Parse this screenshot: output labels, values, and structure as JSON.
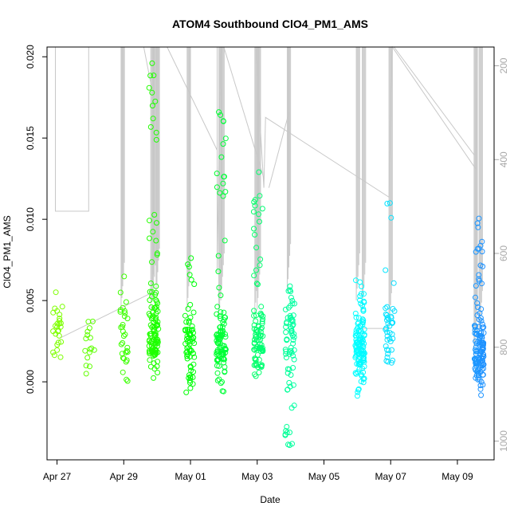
{
  "chart_data": {
    "type": "scatter",
    "title": "ATOM4 Southbound ClO4_PM1_AMS",
    "xlabel": "Date",
    "ylabel": "ClO4_PM1_AMS",
    "xlim": [
      -0.3,
      13.1
    ],
    "ylim": [
      -0.0048,
      0.0206
    ],
    "x_ticks": [
      {
        "day": 0,
        "label": "Apr 27"
      },
      {
        "day": 2,
        "label": "Apr 29"
      },
      {
        "day": 4,
        "label": "May 01"
      },
      {
        "day": 6,
        "label": "May 03"
      },
      {
        "day": 8,
        "label": "May 05"
      },
      {
        "day": 10,
        "label": "May 07"
      },
      {
        "day": 12,
        "label": "May 09"
      }
    ],
    "y_ticks": [
      0.0,
      0.005,
      0.01,
      0.015,
      0.02
    ],
    "y_tick_labels": [
      "0.000",
      "0.005",
      "0.010",
      "0.015",
      "0.020"
    ],
    "y2_axis": {
      "description": "secondary right axis (inverted, gray)",
      "range": [
        1040,
        160
      ],
      "ticks": [
        200,
        400,
        600,
        800,
        1000
      ],
      "tick_labels": [
        "200",
        "400",
        "600",
        "800",
        "1000"
      ],
      "color": "#a8a8a8"
    },
    "color_scale": {
      "from": "#7fff00",
      "via": [
        "#00ff00",
        "#00ffff"
      ],
      "to": "#1e90ff",
      "by": "x"
    },
    "clusters": [
      {
        "x": 0.02,
        "n": 26,
        "ymin": 0.0006,
        "ymax": 0.0066,
        "y_mode": 0.0028
      },
      {
        "x": 0.98,
        "n": 16,
        "ymin": 0.0005,
        "ymax": 0.0046,
        "y_mode": 0.0022
      },
      {
        "x": 1.98,
        "n": 30,
        "ymin": -0.0005,
        "ymax": 0.007,
        "y_mode": 0.0024
      },
      {
        "x": 2.9,
        "n": 120,
        "ymin": -0.0005,
        "ymax": 0.0196,
        "y_mode": 0.003
      },
      {
        "x": 3.98,
        "n": 70,
        "ymin": -0.0011,
        "ymax": 0.008,
        "y_mode": 0.0022
      },
      {
        "x": 4.92,
        "n": 110,
        "ymin": -0.0007,
        "ymax": 0.0166,
        "y_mode": 0.0024
      },
      {
        "x": 6.03,
        "n": 90,
        "ymin": -0.0002,
        "ymax": 0.0129,
        "y_mode": 0.0026
      },
      {
        "x": 6.98,
        "n": 70,
        "ymin": -0.0039,
        "ymax": 0.0065,
        "y_mode": 0.0028
      },
      {
        "x": 9.08,
        "n": 120,
        "ymin": -0.0009,
        "ymax": 0.0063,
        "y_mode": 0.002
      },
      {
        "x": 9.98,
        "n": 40,
        "ymin": 0.0008,
        "ymax": 0.011,
        "y_mode": 0.003
      },
      {
        "x": 12.65,
        "n": 130,
        "ymin": -0.0009,
        "ymax": 0.0101,
        "y_mode": 0.0018
      }
    ],
    "notable_points": [
      {
        "x": 2.85,
        "y": 0.0196
      },
      {
        "x": 2.88,
        "y": 0.0162
      },
      {
        "x": 4.85,
        "y": 0.0166
      },
      {
        "x": 6.97,
        "y": -0.0039
      },
      {
        "x": 6.05,
        "y": 0.0129
      },
      {
        "x": 9.98,
        "y": 0.011
      }
    ],
    "y2_line": {
      "color": "#c8c8c8",
      "points": [
        [
          -0.05,
          160
        ],
        [
          -0.05,
          510
        ],
        [
          0.95,
          510
        ],
        [
          0.95,
          160
        ],
        [
          1.97,
          160
        ],
        [
          1.97,
          160
        ],
        [
          2.6,
          160
        ],
        [
          2.9,
          270
        ],
        [
          2.9,
          160
        ],
        [
          4.8,
          160
        ],
        [
          4.8,
          640
        ],
        [
          4.9,
          160
        ],
        [
          5.95,
          160
        ],
        [
          6.2,
          460
        ],
        [
          6.25,
          310
        ],
        [
          9.95,
          480
        ],
        [
          10.05,
          160
        ],
        [
          12.55,
          420
        ],
        [
          12.58,
          160
        ]
      ],
      "spikes": [
        {
          "x": 1.97,
          "top": 160,
          "bottom": 720
        },
        {
          "x": 2.86,
          "top": 160,
          "bottom": 720
        },
        {
          "x": 2.92,
          "top": 160,
          "bottom": 700
        },
        {
          "x": 3.02,
          "top": 160,
          "bottom": 690
        },
        {
          "x": 3.95,
          "top": 160,
          "bottom": 720
        },
        {
          "x": 4.9,
          "top": 160,
          "bottom": 740
        },
        {
          "x": 4.96,
          "top": 160,
          "bottom": 700
        },
        {
          "x": 5.98,
          "top": 160,
          "bottom": 730
        },
        {
          "x": 6.05,
          "top": 160,
          "bottom": 720
        },
        {
          "x": 6.95,
          "top": 160,
          "bottom": 680
        },
        {
          "x": 9.02,
          "top": 160,
          "bottom": 700
        },
        {
          "x": 9.2,
          "top": 160,
          "bottom": 720
        },
        {
          "x": 10.0,
          "top": 160,
          "bottom": 760
        },
        {
          "x": 12.55,
          "top": 160,
          "bottom": 820
        },
        {
          "x": 12.7,
          "top": 160,
          "bottom": 780
        }
      ],
      "diagonals": [
        [
          [
            0.1,
            780
          ],
          [
            2.95,
            680
          ]
        ],
        [
          [
            3.3,
            160
          ],
          [
            4.8,
            380
          ]
        ],
        [
          [
            5.0,
            160
          ],
          [
            6.2,
            440
          ]
        ],
        [
          [
            6.35,
            460
          ],
          [
            6.95,
            300
          ]
        ],
        [
          [
            9.1,
            760
          ],
          [
            10.0,
            760
          ]
        ],
        [
          [
            10.1,
            160
          ],
          [
            12.5,
            390
          ]
        ]
      ]
    }
  }
}
